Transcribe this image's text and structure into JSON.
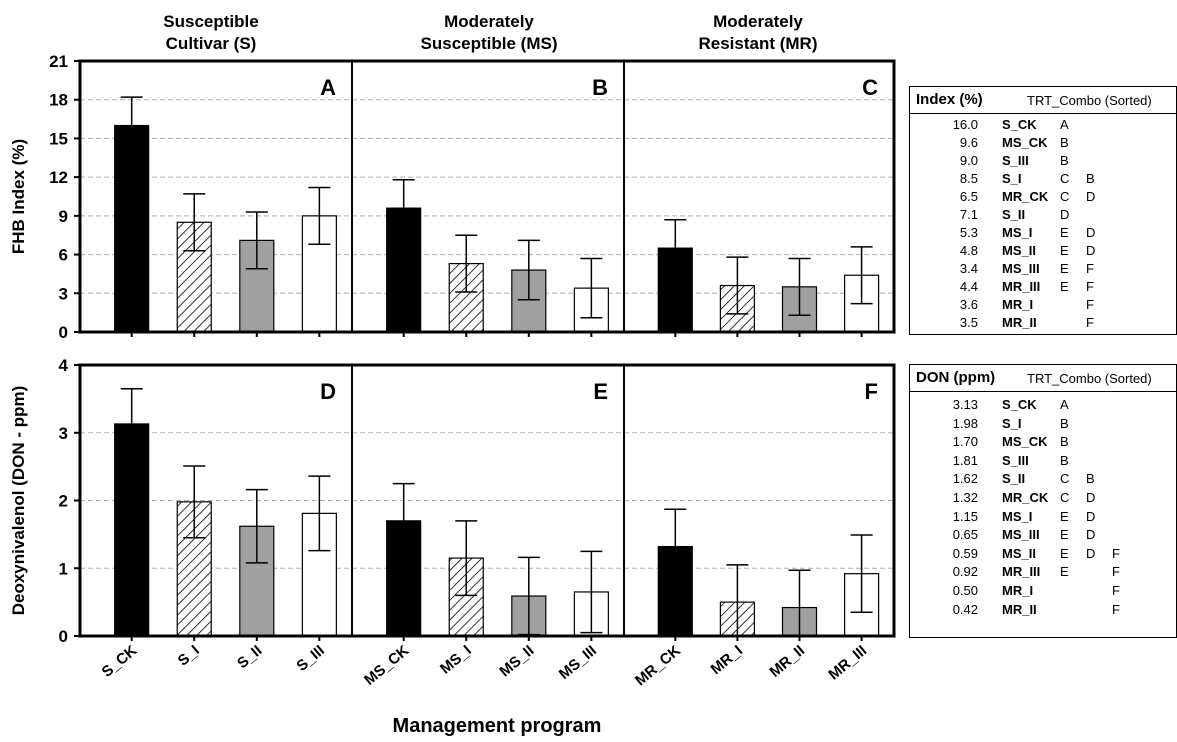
{
  "column_titles": [
    [
      "Susceptible",
      "Cultivar (S)"
    ],
    [
      "Moderately",
      "Susceptible (MS)"
    ],
    [
      "Moderately",
      "Resistant (MR)"
    ]
  ],
  "xlabel": "Management program",
  "colors": {
    "CK": "#000000",
    "I": "#ffffff",
    "II": "#a0a0a0",
    "III": "#ffffff",
    "grid": "#b0b0b0"
  },
  "chart_data": [
    {
      "type": "bar",
      "ylabel": "FHB Index (%)",
      "ylim": [
        0,
        21
      ],
      "yticks": [
        "0",
        "3",
        "6",
        "9",
        "12",
        "15",
        "18",
        "21"
      ],
      "grid": true,
      "panels": [
        {
          "letter": "A",
          "categories": [
            "S_CK",
            "S_I",
            "S_II",
            "S_III"
          ],
          "values": [
            16.0,
            8.5,
            7.1,
            9.0
          ],
          "errors": [
            2.2,
            2.2,
            2.2,
            2.2
          ]
        },
        {
          "letter": "B",
          "categories": [
            "MS_CK",
            "MS_I",
            "MS_II",
            "MS_III"
          ],
          "values": [
            9.6,
            5.3,
            4.8,
            3.4
          ],
          "errors": [
            2.2,
            2.2,
            2.3,
            2.3
          ]
        },
        {
          "letter": "C",
          "categories": [
            "MR_CK",
            "MR_I",
            "MR_II",
            "MR_III"
          ],
          "values": [
            6.5,
            3.6,
            3.5,
            4.4
          ],
          "errors": [
            2.2,
            2.2,
            2.2,
            2.2
          ]
        }
      ]
    },
    {
      "type": "bar",
      "ylabel": "Deoxynivalenol (DON - ppm)",
      "ylim": [
        0,
        4
      ],
      "yticks": [
        "0",
        "1",
        "2",
        "3",
        "4"
      ],
      "grid": true,
      "panels": [
        {
          "letter": "D",
          "categories": [
            "S_CK",
            "S_I",
            "S_II",
            "S_III"
          ],
          "values": [
            3.13,
            1.98,
            1.62,
            1.81
          ],
          "errors": [
            0.52,
            0.53,
            0.54,
            0.55
          ]
        },
        {
          "letter": "E",
          "categories": [
            "MS_CK",
            "MS_I",
            "MS_II",
            "MS_III"
          ],
          "values": [
            1.7,
            1.15,
            0.59,
            0.65
          ],
          "errors": [
            0.55,
            0.55,
            0.57,
            0.6
          ]
        },
        {
          "letter": "F",
          "categories": [
            "MR_CK",
            "MR_I",
            "MR_II",
            "MR_III"
          ],
          "values": [
            1.32,
            0.5,
            0.42,
            0.92
          ],
          "errors": [
            0.55,
            0.55,
            0.55,
            0.57
          ]
        }
      ]
    }
  ],
  "tables": [
    {
      "header": "Index (%)",
      "subheader": "TRT_Combo (Sorted)",
      "rows": [
        {
          "value": "16.0",
          "trt": "S_CK",
          "groups": [
            "A",
            "",
            ""
          ]
        },
        {
          "value": "9.6",
          "trt": "MS_CK",
          "groups": [
            "B",
            "",
            ""
          ]
        },
        {
          "value": "9.0",
          "trt": "S_III",
          "groups": [
            "B",
            "",
            ""
          ]
        },
        {
          "value": "8.5",
          "trt": "S_I",
          "groups": [
            "C",
            "B",
            ""
          ]
        },
        {
          "value": "6.5",
          "trt": "MR_CK",
          "groups": [
            "C",
            "D",
            ""
          ]
        },
        {
          "value": "7.1",
          "trt": "S_II",
          "groups": [
            "D",
            "",
            ""
          ]
        },
        {
          "value": "5.3",
          "trt": "MS_I",
          "groups": [
            "E",
            "D",
            ""
          ]
        },
        {
          "value": "4.8",
          "trt": "MS_II",
          "groups": [
            "E",
            "D",
            ""
          ]
        },
        {
          "value": "3.4",
          "trt": "MS_III",
          "groups": [
            "E",
            "F",
            ""
          ]
        },
        {
          "value": "4.4",
          "trt": "MR_III",
          "groups": [
            "E",
            "F",
            ""
          ]
        },
        {
          "value": "3.6",
          "trt": "MR_I",
          "groups": [
            "",
            "F",
            ""
          ]
        },
        {
          "value": "3.5",
          "trt": "MR_II",
          "groups": [
            "",
            "F",
            ""
          ]
        }
      ]
    },
    {
      "header": "DON (ppm)",
      "subheader": "TRT_Combo (Sorted)",
      "rows": [
        {
          "value": "3.13",
          "trt": "S_CK",
          "groups": [
            "A",
            "",
            ""
          ]
        },
        {
          "value": "1.98",
          "trt": "S_I",
          "groups": [
            "B",
            "",
            ""
          ]
        },
        {
          "value": "1.70",
          "trt": "MS_CK",
          "groups": [
            "B",
            "",
            ""
          ]
        },
        {
          "value": "1.81",
          "trt": "S_III",
          "groups": [
            "B",
            "",
            ""
          ]
        },
        {
          "value": "1.62",
          "trt": "S_II",
          "groups": [
            "C",
            "B",
            ""
          ]
        },
        {
          "value": "1.32",
          "trt": "MR_CK",
          "groups": [
            "C",
            "D",
            ""
          ]
        },
        {
          "value": "1.15",
          "trt": "MS_I",
          "groups": [
            "E",
            "D",
            ""
          ]
        },
        {
          "value": "0.65",
          "trt": "MS_III",
          "groups": [
            "E",
            "D",
            ""
          ]
        },
        {
          "value": "0.59",
          "trt": "MS_II",
          "groups": [
            "E",
            "D",
            "F"
          ]
        },
        {
          "value": "0.92",
          "trt": "MR_III",
          "groups": [
            "E",
            "",
            "F"
          ]
        },
        {
          "value": "0.50",
          "trt": "MR_I",
          "groups": [
            "",
            "",
            "F"
          ]
        },
        {
          "value": "0.42",
          "trt": "MR_II",
          "groups": [
            "",
            "",
            "F"
          ]
        }
      ]
    }
  ]
}
